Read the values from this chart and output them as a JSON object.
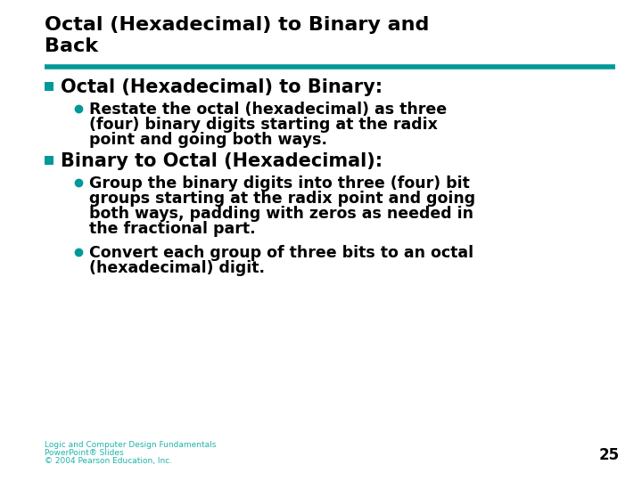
{
  "title_line1": "Octal (Hexadecimal) to Binary and",
  "title_line2": "Back",
  "teal_color": "#009999",
  "bg_color": "#FFFFFF",
  "text_color": "#000000",
  "footer_color": "#20B2AA",
  "section1_bullet": "Octal (Hexadecimal) to Binary:",
  "section1_sub1_lines": [
    "Restate the octal (hexadecimal) as three",
    "(four) binary digits starting at the radix",
    "point and going both ways."
  ],
  "section2_bullet": "Binary to Octal (Hexadecimal):",
  "section2_sub1_lines": [
    "Group the binary digits into three (four) bit",
    "groups starting at the radix point and going",
    "both ways, padding with zeros as needed in",
    "the fractional part."
  ],
  "section2_sub2_lines": [
    "Convert each group of three bits to an octal",
    "(hexadecimal) digit."
  ],
  "footer_line1": "Logic and Computer Design Fundamentals",
  "footer_line2": "PowerPoint® Slides",
  "footer_line3": "© 2004 Pearson Education, Inc.",
  "page_number": "25",
  "title_fontsize": 16,
  "section_fontsize": 15,
  "body_fontsize": 12.5,
  "footer_fontsize": 6.5,
  "page_num_fontsize": 12
}
